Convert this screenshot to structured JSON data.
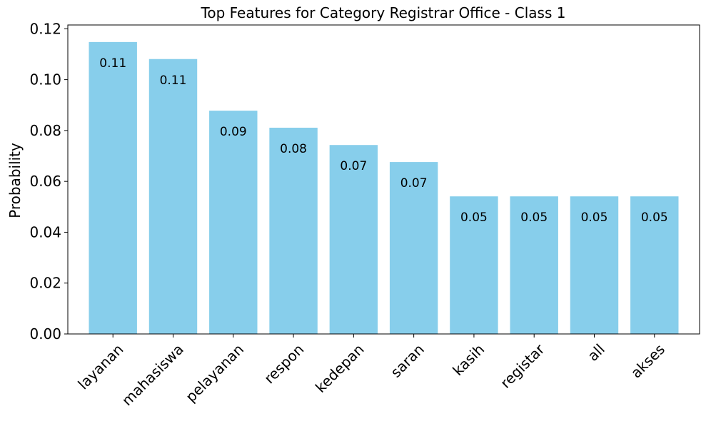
{
  "chart_data": {
    "type": "bar",
    "title": "Top Features for Category Registrar Office - Class 1",
    "xlabel": "",
    "ylabel": "Probability",
    "categories": [
      "layanan",
      "mahasiswa",
      "pelayanan",
      "respon",
      "kedepan",
      "saran",
      "kasih",
      "registar",
      "all",
      "akses"
    ],
    "values": [
      0.1148,
      0.1081,
      0.0878,
      0.0811,
      0.0743,
      0.0676,
      0.0541,
      0.0541,
      0.0541,
      0.0541
    ],
    "data_labels": [
      "0.11",
      "0.11",
      "0.09",
      "0.08",
      "0.07",
      "0.07",
      "0.05",
      "0.05",
      "0.05",
      "0.05"
    ],
    "ylim": [
      0,
      0.1215
    ],
    "yticks": [
      0.0,
      0.02,
      0.04,
      0.06,
      0.08,
      0.1,
      0.12
    ],
    "ytick_labels": [
      "0.00",
      "0.02",
      "0.04",
      "0.06",
      "0.08",
      "0.10",
      "0.12"
    ],
    "grid": false,
    "bar_color": "#87CEEB",
    "axis_color": "#000000"
  }
}
